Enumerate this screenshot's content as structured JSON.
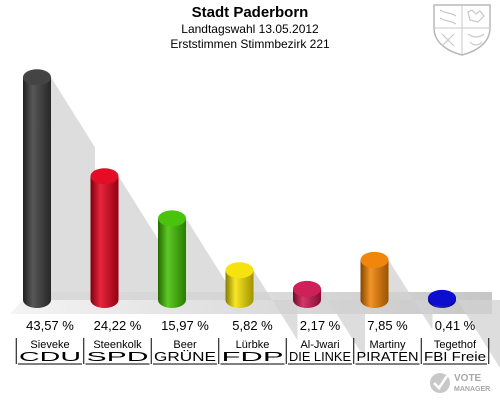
{
  "header": {
    "title": "Stadt Paderborn",
    "subtitle1": "Landtagswahl 13.05.2012",
    "subtitle2": "Erststimmen Stimmbezirk 221"
  },
  "logo": {
    "line1": "VOTE",
    "line2": "MANAGER"
  },
  "chart_data": {
    "type": "bar",
    "title": "Stadt Paderborn",
    "subtitle": "Landtagswahl 13.05.2012 / Erststimmen Stimmbezirk 221",
    "categories": [
      "CDU",
      "SPD",
      "GRÜNE",
      "FDP",
      "DIE LINKE",
      "PIRATEN",
      "FBI Freie"
    ],
    "candidates": [
      "Sieveke",
      "Steenkolk",
      "Beer",
      "Lürbke",
      "Al-Jwari",
      "Martiny",
      "Tegethof"
    ],
    "values": [
      43.57,
      24.22,
      15.97,
      5.82,
      2.17,
      7.85,
      0.41
    ],
    "value_labels": [
      "43,57 %",
      "24,22 %",
      "15,97 %",
      "5,82 %",
      "2,17 %",
      "7,85 %",
      "0,41 %"
    ],
    "colors": [
      "#3a3a3a",
      "#e3001b",
      "#3fc000",
      "#f5e200",
      "#cc1450",
      "#f08000",
      "#0000cc"
    ],
    "ylim": [
      0,
      45
    ]
  }
}
